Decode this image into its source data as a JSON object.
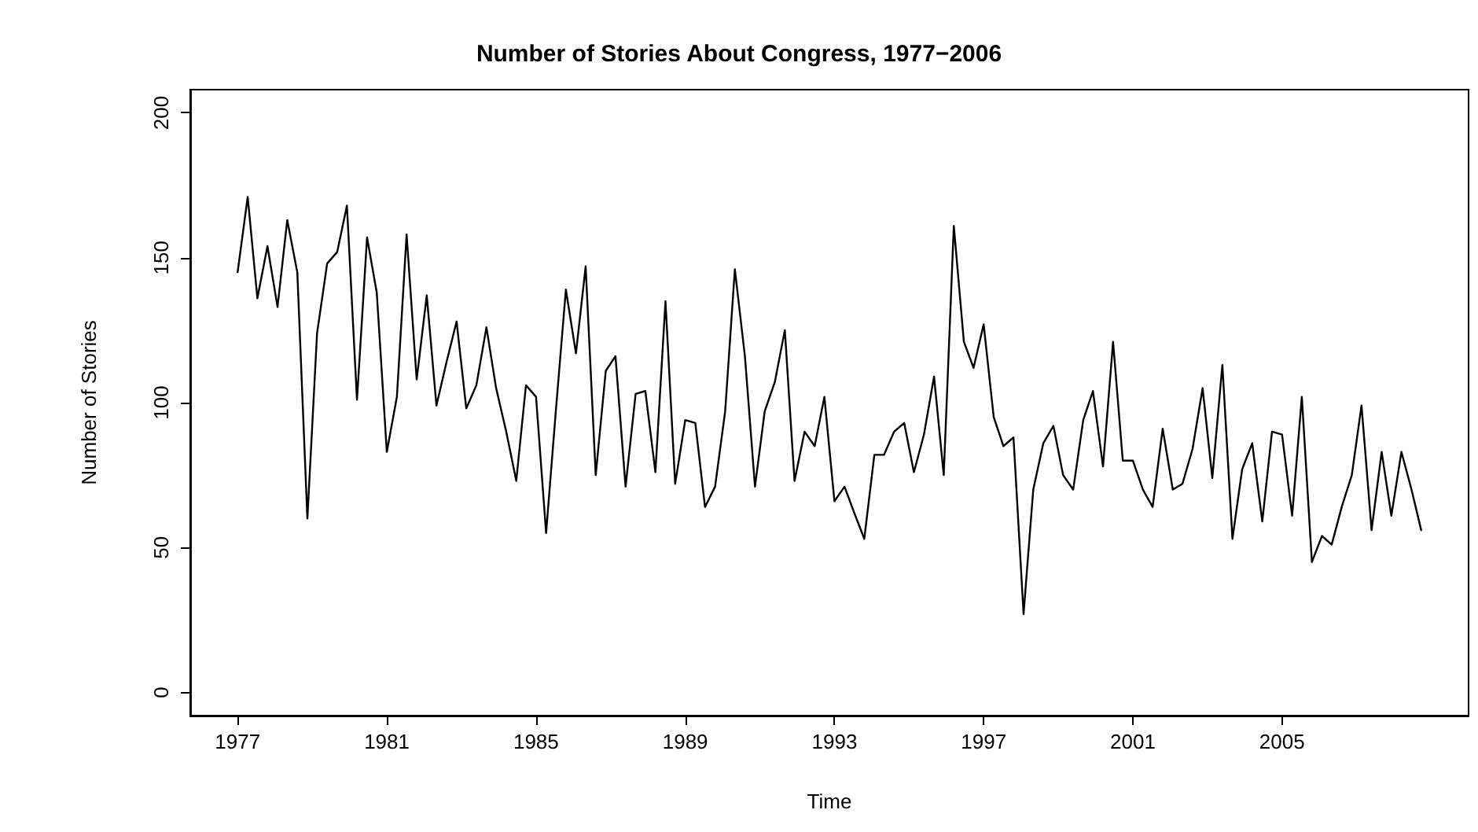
{
  "chart_data": {
    "type": "line",
    "title": "Number of Stories About Congress, 1977−2006",
    "xlabel": "Time",
    "ylabel": "Number of Stories",
    "x": [
      1977.0,
      1977.27,
      1977.53,
      1977.8,
      1978.07,
      1978.33,
      1978.6,
      1978.87,
      1979.13,
      1979.4,
      1979.67,
      1979.93,
      1980.2,
      1980.47,
      1980.73,
      1981.0,
      1981.27,
      1981.53,
      1981.8,
      1982.07,
      1982.33,
      1982.6,
      1982.87,
      1983.13,
      1983.4,
      1983.67,
      1983.93,
      1984.2,
      1984.47,
      1984.73,
      1985.0,
      1985.27,
      1985.53,
      1985.8,
      1986.07,
      1986.33,
      1986.6,
      1986.87,
      1987.13,
      1987.4,
      1987.67,
      1987.93,
      1988.2,
      1988.47,
      1988.73,
      1989.0,
      1989.27,
      1989.53,
      1989.8,
      1990.07,
      1990.33,
      1990.6,
      1990.87,
      1991.13,
      1991.4,
      1991.67,
      1991.93,
      1992.2,
      1992.47,
      1992.73,
      1993.0,
      1993.27,
      1993.53,
      1993.8,
      1994.07,
      1994.33,
      1994.6,
      1994.87,
      1995.13,
      1995.4,
      1995.67,
      1995.93,
      1996.2,
      1996.47,
      1996.73,
      1997.0,
      1997.27,
      1997.53,
      1997.8,
      1998.07,
      1998.33,
      1998.6,
      1998.87,
      1999.13,
      1999.4,
      1999.67,
      1999.93,
      2000.2,
      2000.47,
      2000.73,
      2001.0,
      2001.27,
      2001.53,
      2001.8,
      2002.07,
      2002.33,
      2002.6,
      2002.87,
      2003.13,
      2003.4,
      2003.67,
      2003.93,
      2004.2,
      2004.47,
      2004.73,
      2005.0,
      2005.27,
      2005.53,
      2005.8,
      2006.07,
      2006.33,
      2006.6,
      2006.87,
      2007.13,
      2007.4,
      2007.67,
      2007.93,
      2008.2,
      2008.47,
      2008.73
    ],
    "series": [
      {
        "color": "#000000",
        "values": [
          145,
          171,
          136,
          154,
          133,
          163,
          145,
          60,
          124,
          148,
          152,
          168,
          101,
          157,
          138,
          83,
          102,
          158,
          108,
          137,
          99,
          114,
          128,
          98,
          106,
          126,
          105,
          90,
          73,
          106,
          102,
          55,
          97,
          139,
          117,
          147,
          75,
          111,
          116,
          71,
          103,
          104,
          76,
          135,
          72,
          94,
          93,
          64,
          71,
          97,
          146,
          116,
          71,
          97,
          107,
          125,
          73,
          90,
          85,
          102,
          66,
          71,
          62,
          53,
          82,
          82,
          90,
          93,
          76,
          89,
          109,
          75,
          161,
          121,
          112,
          127,
          95,
          85,
          88,
          27,
          70,
          86,
          92,
          75,
          70,
          94,
          104,
          78,
          121,
          80,
          80,
          70,
          64,
          91,
          70,
          72,
          84,
          105,
          74,
          113,
          53,
          77,
          86,
          59,
          90,
          89,
          61,
          102,
          45,
          54,
          51,
          64,
          75,
          99,
          56,
          83,
          61,
          83,
          70,
          56
        ]
      }
    ],
    "xlim": [
      1975.73,
      2010
    ],
    "ylim": [
      -8,
      208
    ],
    "xticks": [
      1977,
      1981,
      1985,
      1989,
      1993,
      1997,
      2001,
      2005
    ],
    "yticks": [
      0,
      50,
      100,
      150,
      200
    ],
    "grid": false,
    "marker": "none",
    "line_style": "solid"
  }
}
